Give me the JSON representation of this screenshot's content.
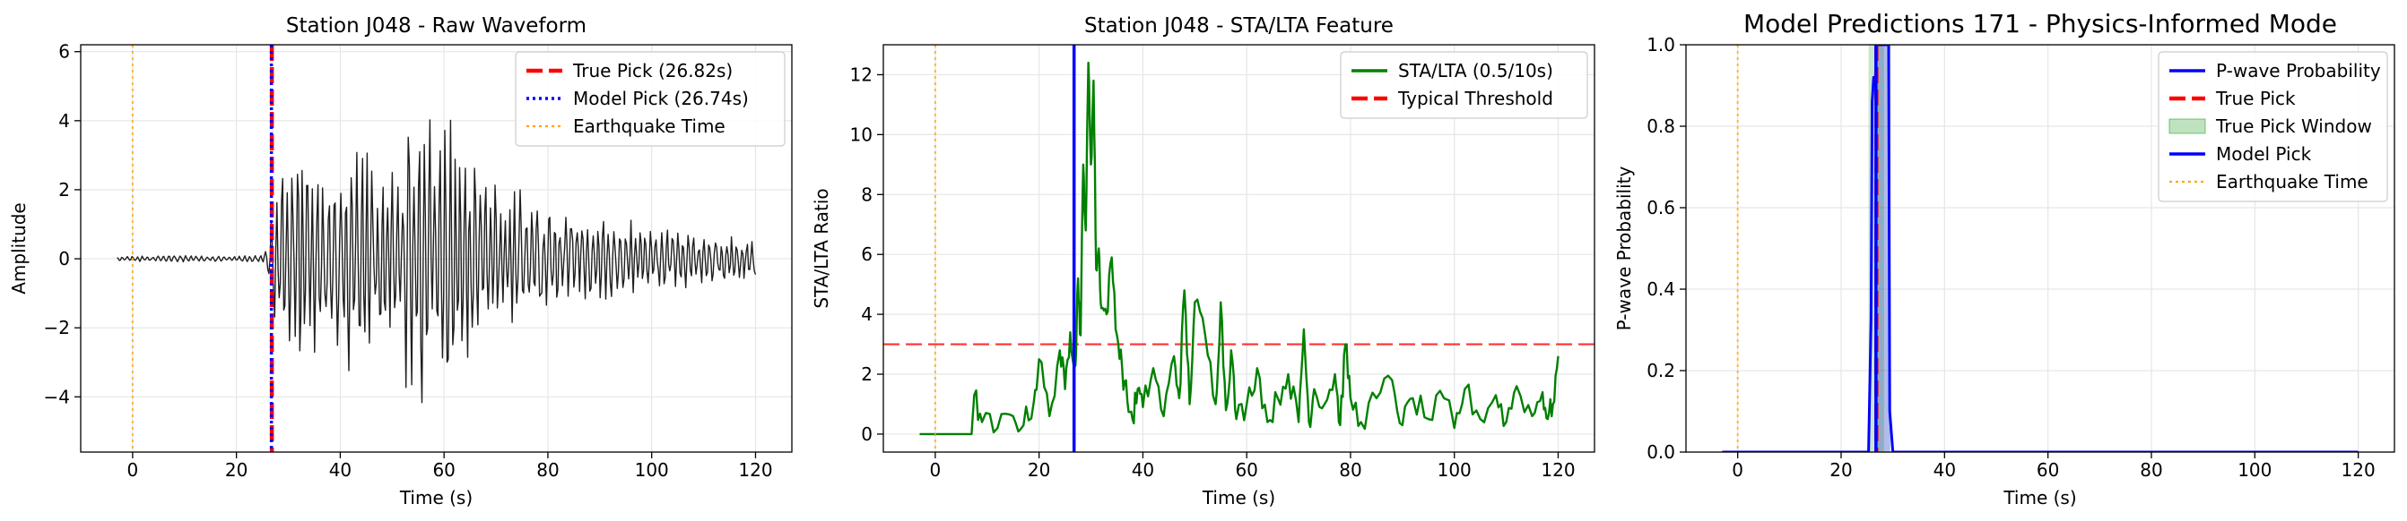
{
  "chart_data": [
    {
      "type": "line",
      "title": "Station J048 - Raw Waveform",
      "xlabel": "Time (s)",
      "ylabel": "Amplitude",
      "xlim": [
        -10,
        127
      ],
      "ylim": [
        -5.6,
        6.2
      ],
      "xticks": [
        0,
        20,
        40,
        60,
        80,
        100,
        120
      ],
      "yticks": [
        -4,
        -2,
        0,
        2,
        4,
        6
      ],
      "xtick_labels": [
        "0",
        "20",
        "40",
        "60",
        "80",
        "100",
        "120"
      ],
      "ytick_labels": [
        "−4",
        "−2",
        "0",
        "2",
        "4",
        "6"
      ],
      "grid": true,
      "legend_position": "upper right",
      "series": [
        {
          "name": "",
          "color": "#1f1f1f",
          "x": [
            -3,
            0,
            5,
            10,
            15,
            20,
            25,
            26.6,
            27.5,
            30,
            32,
            35,
            38,
            40,
            42,
            45,
            48,
            50,
            52,
            54,
            56,
            57,
            58,
            59,
            60,
            62,
            65,
            68,
            70,
            72,
            75,
            78,
            80,
            85,
            90,
            95,
            100,
            105,
            110,
            115,
            120
          ],
          "envelope": [
            0.06,
            0.08,
            0.1,
            0.1,
            0.08,
            0.08,
            0.1,
            1.0,
            2.6,
            3.0,
            3.6,
            3.2,
            2.9,
            3.0,
            3.5,
            3.4,
            3.0,
            3.0,
            3.6,
            4.3,
            5.4,
            4.5,
            3.8,
            4.3,
            4.8,
            3.8,
            3.0,
            2.7,
            2.6,
            2.3,
            2.3,
            2.0,
            1.8,
            1.6,
            1.4,
            1.2,
            1.0,
            0.9,
            0.8,
            0.7,
            0.6
          ]
        }
      ],
      "vlines": [
        {
          "name": "True Pick (26.82s)",
          "x": 26.82,
          "color": "#ff0000",
          "style": "dashed"
        },
        {
          "name": "Model Pick (26.74s)",
          "x": 26.74,
          "color": "#0000ff",
          "style": "dotted"
        },
        {
          "name": "Earthquake Time",
          "x": 0,
          "color": "#ffa500",
          "style": "dotted"
        }
      ],
      "legend": [
        {
          "label": "True Pick (26.82s)",
          "color": "#ff0000",
          "style": "dashed"
        },
        {
          "label": "Model Pick (26.74s)",
          "color": "#0000ff",
          "style": "dotted"
        },
        {
          "label": "Earthquake Time",
          "color": "#ffa500",
          "style": "dotted"
        }
      ]
    },
    {
      "type": "line",
      "title": "Station J048 - STA/LTA Feature",
      "xlabel": "Time (s)",
      "ylabel": "STA/LTA Ratio",
      "xlim": [
        -10,
        127
      ],
      "ylim": [
        -0.6,
        13
      ],
      "xticks": [
        0,
        20,
        40,
        60,
        80,
        100,
        120
      ],
      "yticks": [
        0,
        2,
        4,
        6,
        8,
        10,
        12
      ],
      "xtick_labels": [
        "0",
        "20",
        "40",
        "60",
        "80",
        "100",
        "120"
      ],
      "ytick_labels": [
        "0",
        "2",
        "4",
        "6",
        "8",
        "10",
        "12"
      ],
      "grid": true,
      "legend_position": "upper right",
      "series": [
        {
          "name": "STA/LTA (0.5/10s)",
          "color": "#008000",
          "x": [
            -3,
            7,
            7.5,
            9,
            12,
            15,
            17,
            19,
            20,
            22,
            24,
            25,
            26,
            27,
            27.5,
            28,
            28.5,
            29,
            29.5,
            30,
            30.5,
            31,
            31.5,
            32,
            33,
            34,
            35,
            36,
            37,
            38,
            39,
            40,
            42,
            44,
            46,
            47,
            48,
            49,
            50,
            52,
            54,
            55,
            56,
            57,
            58,
            60,
            62,
            64,
            66,
            68,
            70,
            71,
            72,
            73,
            75,
            77,
            78,
            79,
            80,
            82,
            85,
            88,
            90,
            92,
            95,
            98,
            100,
            102,
            105,
            108,
            110,
            112,
            115,
            117,
            118,
            119,
            120
          ],
          "y": [
            0,
            0,
            1.3,
            0.4,
            0.2,
            0.6,
            0.3,
            1.1,
            2.5,
            0.6,
            2.8,
            1.5,
            3.4,
            2.3,
            5.2,
            3.3,
            9.0,
            6.8,
            12.4,
            9.0,
            11.8,
            5.5,
            6.2,
            4.2,
            4.0,
            5.9,
            3.3,
            2.2,
            1.1,
            0.5,
            1.5,
            0.9,
            2.2,
            0.6,
            2.6,
            1.2,
            4.8,
            1.0,
            4.4,
            3.3,
            1.0,
            4.4,
            0.8,
            2.8,
            0.5,
            1.0,
            2.2,
            0.4,
            1.2,
            2.0,
            0.4,
            3.5,
            0.4,
            1.5,
            1.0,
            2.0,
            0.3,
            3.0,
            1.2,
            0.4,
            1.2,
            1.8,
            0.3,
            1.2,
            0.5,
            1.2,
            0.2,
            1.5,
            0.5,
            1.3,
            0.4,
            1.6,
            0.6,
            1.4,
            0.5,
            1.0,
            2.6
          ]
        }
      ],
      "hlines": [
        {
          "name": "Typical Threshold",
          "y": 3,
          "color": "#ff0000",
          "style": "dashed"
        }
      ],
      "vlines": [
        {
          "name": "",
          "x": 26.74,
          "color": "#0000ff",
          "style": "solid"
        },
        {
          "name": "",
          "x": 0,
          "color": "#ffa500",
          "style": "dotted"
        }
      ],
      "legend": [
        {
          "label": "STA/LTA (0.5/10s)",
          "color": "#008000",
          "style": "solid"
        },
        {
          "label": "Typical Threshold",
          "color": "#ff0000",
          "style": "dashed"
        }
      ]
    },
    {
      "type": "line",
      "title": "Model Predictions 171 - Physics-Informed Mode",
      "xlabel": "Time (s)",
      "ylabel": "P-wave Probability",
      "xlim": [
        -10,
        127
      ],
      "ylim": [
        0,
        1
      ],
      "xticks": [
        0,
        20,
        40,
        60,
        80,
        100,
        120
      ],
      "yticks": [
        0,
        0.2,
        0.4,
        0.6,
        0.8,
        1.0
      ],
      "xtick_labels": [
        "0",
        "20",
        "40",
        "60",
        "80",
        "100",
        "120"
      ],
      "ytick_labels": [
        "0.0",
        "0.2",
        "0.4",
        "0.6",
        "0.8",
        "1.0"
      ],
      "grid": true,
      "legend_position": "upper right",
      "series": [
        {
          "name": "P-wave Probability",
          "color": "#0000ff",
          "x": [
            -3,
            25.3,
            25.8,
            26.0,
            26.3,
            26.6,
            26.8,
            29.2,
            29.4,
            30,
            120
          ],
          "y": [
            0,
            0,
            0.33,
            0.86,
            0.92,
            0.9,
            1.0,
            1.0,
            0.1,
            0,
            0
          ]
        }
      ],
      "spans": [
        {
          "name": "True Pick Window",
          "x0": 25.3,
          "x1": 28.3,
          "color": "#2ca02c",
          "alpha": 0.25
        },
        {
          "name": "",
          "x0": 26.7,
          "x1": 29.5,
          "color": "#1f3fbf",
          "alpha": 0.35
        }
      ],
      "vlines": [
        {
          "name": "True Pick",
          "x": 26.82,
          "color": "#ff0000",
          "style": "dashed"
        },
        {
          "name": "Model Pick",
          "x": 26.74,
          "color": "#0000ff",
          "style": "solid"
        },
        {
          "name": "Earthquake Time",
          "x": 0,
          "color": "#ffa500",
          "style": "dotted"
        }
      ],
      "legend": [
        {
          "label": "P-wave Probability",
          "color": "#0000ff",
          "style": "solid"
        },
        {
          "label": "True Pick",
          "color": "#ff0000",
          "style": "dashed"
        },
        {
          "label": "True Pick Window",
          "color": "#2ca02c",
          "style": "patch"
        },
        {
          "label": "Model Pick",
          "color": "#0000ff",
          "style": "solid"
        },
        {
          "label": "Earthquake Time",
          "color": "#ffa500",
          "style": "dotted"
        }
      ]
    }
  ]
}
